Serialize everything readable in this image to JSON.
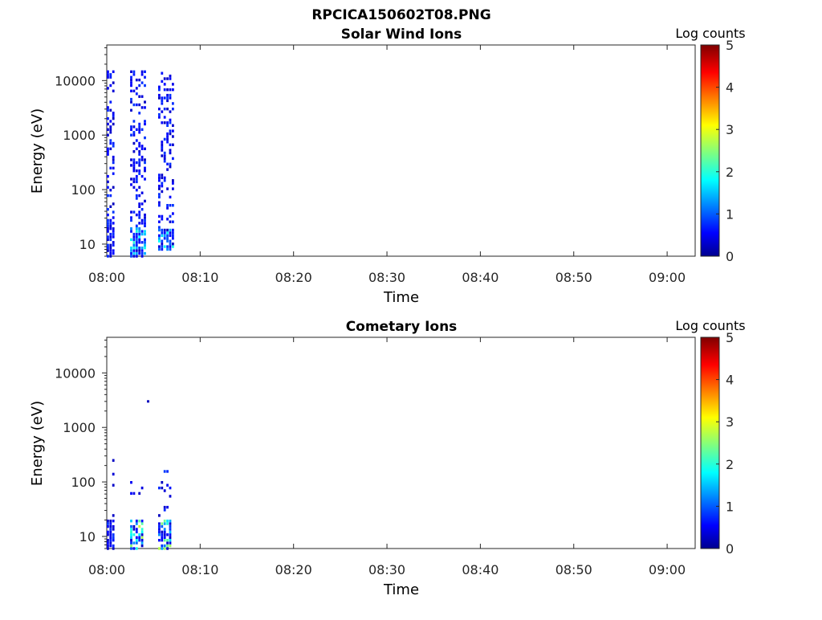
{
  "figure": {
    "main_title": "RPCICA150602T08.PNG"
  },
  "chart_data": [
    {
      "type": "heatmap",
      "title": "Solar Wind Ions",
      "xlabel": "Time",
      "ylabel": "Energy (eV)",
      "yscale": "log",
      "xlim": [
        "08:00",
        "09:03"
      ],
      "ylim": [
        6,
        45000
      ],
      "xticks": [
        "08:00",
        "08:10",
        "08:20",
        "08:30",
        "08:40",
        "08:50",
        "09:00"
      ],
      "yticks": [
        10,
        100,
        1000,
        10000
      ],
      "ytick_labels": [
        "10",
        "100",
        "1000",
        "10000"
      ],
      "colorbar": {
        "label": "Log counts",
        "min": 0,
        "max": 5,
        "ticks": [
          "0",
          "1",
          "2",
          "3",
          "4",
          "5"
        ],
        "colormap": "jet"
      },
      "bursts": [
        {
          "start_min": 0.0,
          "end_min": 0.8,
          "emin": 6,
          "emax": 15000
        },
        {
          "start_min": 2.5,
          "end_min": 4.2,
          "emin": 6,
          "emax": 15000
        },
        {
          "start_min": 5.5,
          "end_min": 7.3,
          "emin": 8,
          "emax": 15000
        }
      ]
    },
    {
      "type": "heatmap",
      "title": "Cometary Ions",
      "xlabel": "Time",
      "ylabel": "Energy (eV)",
      "yscale": "log",
      "xlim": [
        "08:00",
        "09:03"
      ],
      "ylim": [
        6,
        45000
      ],
      "xticks": [
        "08:00",
        "08:10",
        "08:20",
        "08:30",
        "08:40",
        "08:50",
        "09:00"
      ],
      "yticks": [
        10,
        100,
        1000,
        10000
      ],
      "ytick_labels": [
        "10",
        "100",
        "1000",
        "10000"
      ],
      "colorbar": {
        "label": "Log counts",
        "min": 0,
        "max": 5,
        "ticks": [
          "0",
          "1",
          "2",
          "3",
          "4",
          "5"
        ],
        "colormap": "jet"
      },
      "bursts": [
        {
          "start_min": 0.0,
          "end_min": 0.8,
          "emin": 6,
          "emax": 250
        },
        {
          "start_min": 2.5,
          "end_min": 4.0,
          "emin": 6,
          "emax": 150
        },
        {
          "start_min": 5.5,
          "end_min": 7.0,
          "emin": 6,
          "emax": 170
        }
      ],
      "isolated_points": [
        {
          "time_min": 4.3,
          "energy": 3000
        }
      ]
    }
  ]
}
